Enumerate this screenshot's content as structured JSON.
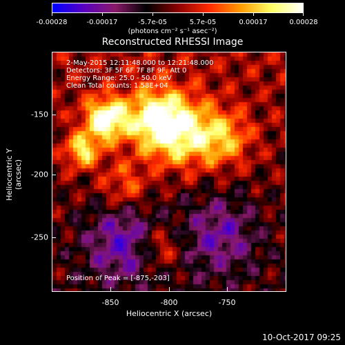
{
  "colorbar": {
    "ticks": [
      "-0.00028",
      "-0.00017",
      "-5.7e-05",
      "5.7e-05",
      "0.00017",
      "0.00028"
    ],
    "units": "(photons cm⁻² s⁻¹ asec⁻²)",
    "colors": [
      "#0000ff",
      "#5a00c0",
      "#8a1a6a",
      "#000000",
      "#8b0000",
      "#ff2a00",
      "#ff9b00",
      "#ffff66",
      "#ffffff"
    ]
  },
  "title": "Reconstructed RHESSI Image",
  "info_lines": [
    "2-May-2015 12:11:48.000 to 12:21:48.000",
    "Detectors: 3F 5F 6F 7F 8F 9F, Att 0",
    "Energy Range: 25.0 - 50.0 keV",
    "Clean     Total counts: 1.58E+04"
  ],
  "peak": "Position of Peak = [-875,-203]",
  "x_axis": {
    "label": "Heliocentric X (arcsec)",
    "ticks": [
      "-850",
      "-800",
      "-750"
    ]
  },
  "y_axis": {
    "label": "Heliocentric Y (arcsec)",
    "ticks": [
      "-150",
      "-200",
      "-250"
    ]
  },
  "timestamp": "10-Oct-2017 09:25"
}
